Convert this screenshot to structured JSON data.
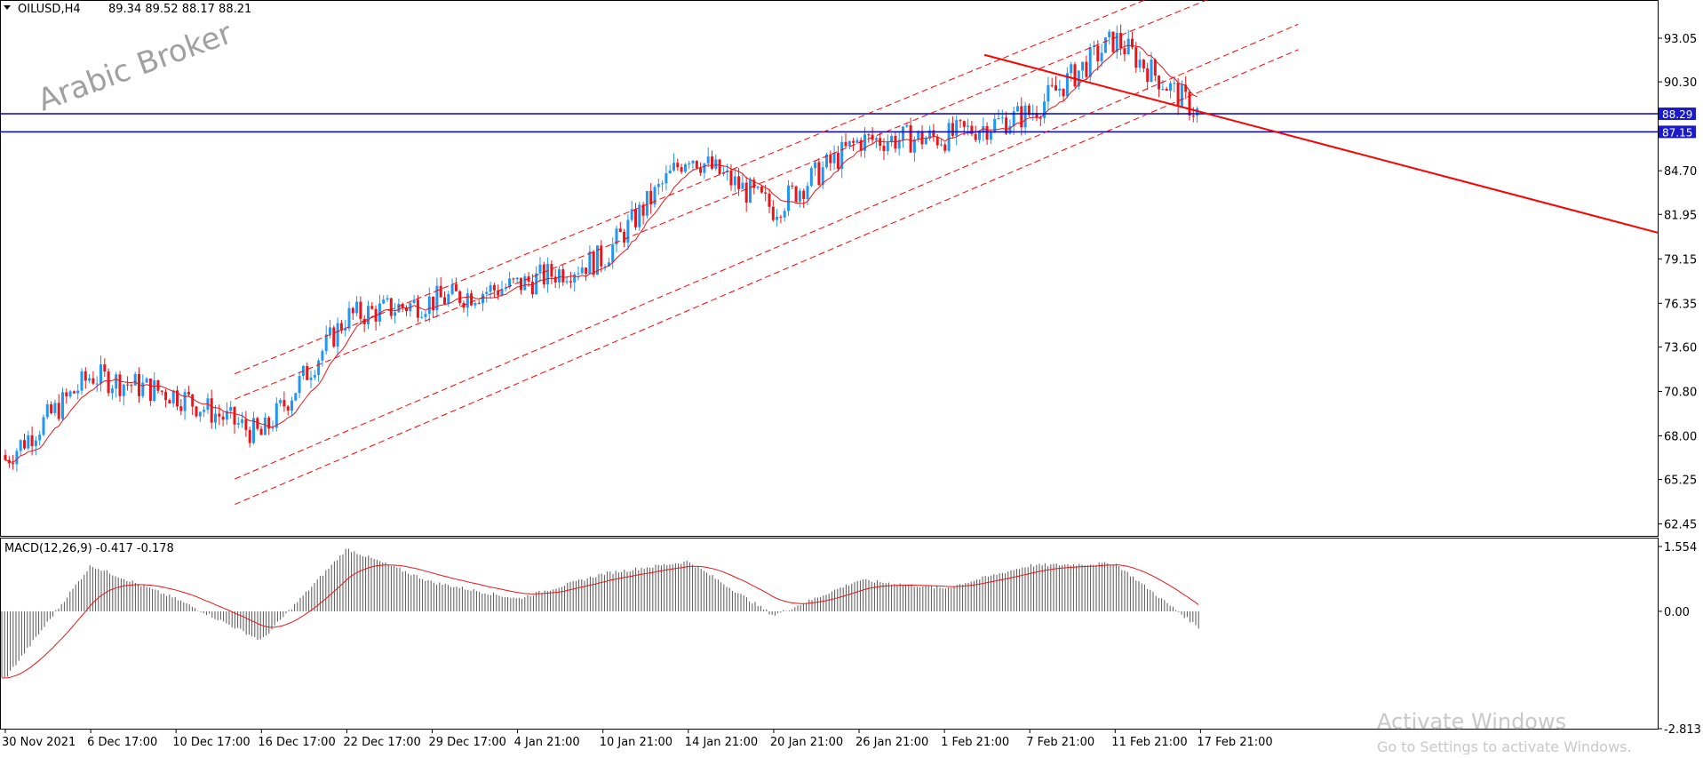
{
  "header": {
    "symbol": "OILUSD,H4",
    "ohlc": "89.34 89.52 88.17 88.21"
  },
  "watermark": "Arabic Broker",
  "os_notice": {
    "title": "Activate Windows",
    "subtitle": "Go to Settings to activate Windows."
  },
  "colors": {
    "bull": "#2196f3",
    "bear": "#e8151a",
    "level_line": "#0000cc",
    "price_tag_bg": "#1a1acc",
    "trend": "#ff0000",
    "ma": "#e8151a",
    "macd_hist": "#555555",
    "macd_signal": "#e8151a"
  },
  "chart_data": [
    {
      "type": "line",
      "title": "OILUSD,H4",
      "description": "H4 candlestick chart with moving average, rising parallel channel, descending trend line and two horizontal levels",
      "x_tick_labels": [
        "30 Nov 2021",
        "6 Dec 17:00",
        "10 Dec 17:00",
        "16 Dec 17:00",
        "22 Dec 17:00",
        "29 Dec 17:00",
        "4 Jan 21:00",
        "10 Jan 21:00",
        "14 Jan 21:00",
        "20 Jan 21:00",
        "26 Jan 21:00",
        "1 Feb 21:00",
        "7 Feb 21:00",
        "11 Feb 21:00",
        "17 Feb 21:00"
      ],
      "y_ticks": [
        93.05,
        90.3,
        84.7,
        81.95,
        79.15,
        76.35,
        73.6,
        70.8,
        68.0,
        65.25,
        62.45
      ],
      "y_tick_labels": [
        "93.05",
        "90.30",
        "84.70",
        "81.95",
        "79.15",
        "76.35",
        "73.60",
        "70.80",
        "68.00",
        "65.25",
        "62.45"
      ],
      "ylim": [
        61.7,
        95.4
      ],
      "horizontal_levels": [
        {
          "value": 88.29,
          "label": "88.29"
        },
        {
          "value": 87.15,
          "label": "87.15"
        }
      ],
      "price_path_approx": {
        "x": [
          "30 Nov 2021",
          "6 Dec 17:00",
          "10 Dec 17:00",
          "16 Dec 17:00",
          "22 Dec 17:00",
          "29 Dec 17:00",
          "4 Jan 21:00",
          "10 Jan 21:00",
          "14 Jan 21:00",
          "20 Jan 21:00",
          "26 Jan 21:00",
          "1 Feb 21:00",
          "7 Feb 21:00",
          "11 Feb 21:00",
          "17 Feb 21:00"
        ],
        "y": [
          66.5,
          71.8,
          70.6,
          68.0,
          75.5,
          76.5,
          77.5,
          79.2,
          85.8,
          82.3,
          86.6,
          86.8,
          88.3,
          93.0,
          88.2
        ]
      },
      "channel": {
        "start": "16 Dec 17:00",
        "start_lower": 66.0,
        "start_upper": 72.6,
        "end": "17 Feb 21:00",
        "end_lower": 91.3,
        "end_upper": 96.9
      },
      "trend_line": {
        "start": "1 Feb 21:00",
        "start_value": 92.0,
        "end_date_beyond_axis": true,
        "end_value": 80.8
      },
      "grid": false
    },
    {
      "type": "bar",
      "title": "MACD(12,26,9) -0.417 -0.178",
      "macd_value": -0.417,
      "signal_value": -0.178,
      "y_tick_labels": [
        "1.554",
        "0.00",
        "-2.813"
      ],
      "ylim": [
        -2.813,
        1.554
      ],
      "histogram_approx": {
        "x": [
          "30 Nov 2021",
          "6 Dec 17:00",
          "10 Dec 17:00",
          "16 Dec 17:00",
          "22 Dec 17:00",
          "29 Dec 17:00",
          "4 Jan 21:00",
          "10 Jan 21:00",
          "14 Jan 21:00",
          "20 Jan 21:00",
          "26 Jan 21:00",
          "1 Feb 21:00",
          "7 Feb 21:00",
          "11 Feb 21:00",
          "17 Feb 21:00"
        ],
        "y": [
          -1.6,
          1.1,
          0.3,
          -0.7,
          1.5,
          0.7,
          0.3,
          0.9,
          1.2,
          -0.1,
          0.75,
          0.55,
          1.1,
          1.15,
          -0.42
        ]
      }
    }
  ]
}
